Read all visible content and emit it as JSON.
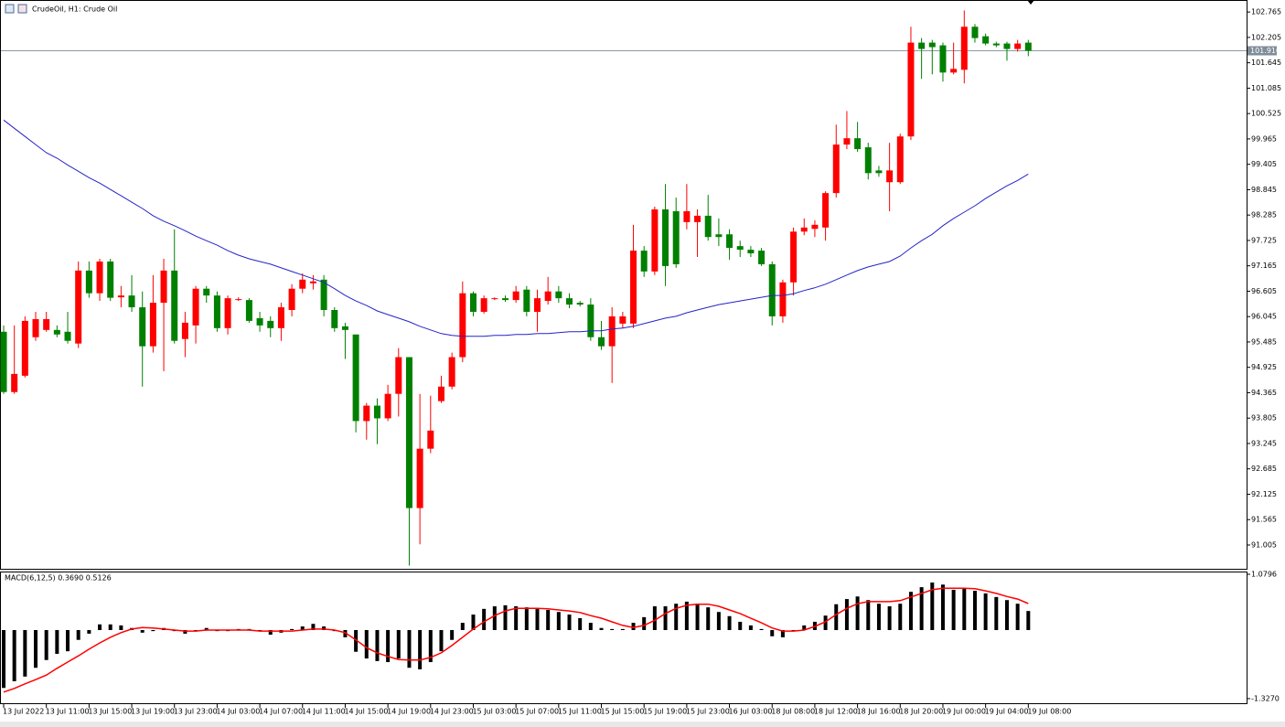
{
  "chart_data": [
    {
      "type": "candlestick",
      "title": "CrudeOil, H1:  Crude Oil",
      "categories": [
        "13 Jul 2022",
        null,
        null,
        null,
        "13 Jul 11:00",
        null,
        null,
        null,
        "13 Jul 15:00",
        null,
        null,
        null,
        "13 Jul 19:00",
        null,
        null,
        null,
        "13 Jul 23:00",
        null,
        null,
        null,
        "14 Jul 03:00",
        null,
        null,
        null,
        "14 Jul 07:00",
        null,
        null,
        null,
        "14 Jul 11:00",
        null,
        null,
        null,
        "14 Jul 15:00",
        null,
        null,
        null,
        "14 Jul 19:00",
        null,
        null,
        null,
        "14 Jul 23:00",
        null,
        null,
        null,
        "15 Jul 03:00",
        null,
        null,
        null,
        "15 Jul 07:00",
        null,
        null,
        null,
        "15 Jul 11:00",
        null,
        null,
        null,
        "15 Jul 15:00",
        null,
        null,
        null,
        "15 Jul 19:00",
        null,
        null,
        null,
        "15 Jul 23:00",
        null,
        null,
        null,
        "16 Jul 03:00",
        null,
        null,
        null,
        "18 Jul 08:00",
        null,
        null,
        null,
        "18 Jul 12:00",
        null,
        null,
        null,
        "18 Jul 16:00",
        null,
        null,
        null,
        "18 Jul 20:00",
        null,
        null,
        null,
        "19 Jul 00:00",
        null,
        null,
        null,
        "19 Jul 04:00",
        null,
        null,
        null,
        "19 Jul 08:00"
      ],
      "open": [
        95.71,
        94.38,
        94.74,
        95.59,
        95.75,
        95.75,
        95.71,
        95.45,
        97.06,
        96.56,
        97.26,
        96.47,
        96.51,
        96.25,
        95.39,
        96.35,
        97.06,
        95.55,
        95.85,
        96.66,
        96.51,
        95.79,
        96.41,
        96.41,
        96.01,
        95.95,
        95.79,
        96.19,
        96.66,
        96.78,
        96.86,
        96.19,
        95.83,
        95.65,
        93.74,
        94.08,
        93.8,
        94.34,
        95.15,
        91.82,
        93.13,
        94.18,
        94.5,
        95.15,
        96.56,
        96.15,
        96.43,
        96.45,
        96.41,
        96.64,
        96.15,
        96.39,
        96.6,
        96.45,
        96.35,
        96.31,
        95.59,
        95.39,
        95.89,
        95.89,
        97.5,
        97.04,
        98.41,
        98.37,
        98.13,
        98.13,
        98.27,
        97.86,
        97.86,
        97.6,
        97.52,
        97.5,
        97.2,
        96.05,
        96.8,
        97.92,
        97.98,
        98.01,
        98.77,
        99.84,
        99.98,
        99.78,
        99.27,
        99.01,
        99.01,
        100.02,
        102.09,
        102.09,
        102.03,
        101.43,
        101.49,
        102.44,
        102.23,
        102.07,
        102.07,
        101.95,
        102.09
      ],
      "high": [
        95.85,
        95.85,
        96.05,
        96.15,
        96.15,
        95.85,
        96.15,
        97.26,
        97.26,
        97.32,
        97.32,
        96.72,
        96.96,
        96.6,
        96.96,
        97.32,
        97.97,
        96.15,
        96.72,
        96.72,
        96.6,
        96.51,
        96.47,
        96.45,
        96.15,
        96.05,
        96.35,
        96.76,
        97.0,
        96.96,
        96.96,
        96.25,
        95.91,
        95.65,
        94.14,
        94.24,
        94.54,
        95.35,
        95.15,
        94.34,
        94.3,
        94.74,
        95.25,
        96.82,
        96.6,
        96.51,
        96.47,
        96.51,
        96.72,
        96.72,
        96.64,
        96.92,
        96.72,
        96.56,
        96.39,
        96.45,
        95.95,
        96.25,
        96.15,
        98.07,
        97.6,
        98.47,
        98.97,
        98.67,
        98.97,
        98.41,
        98.73,
        98.21,
        97.97,
        97.72,
        97.6,
        97.56,
        97.26,
        96.86,
        98.01,
        98.21,
        98.17,
        98.81,
        100.28,
        100.58,
        100.34,
        99.88,
        99.37,
        99.88,
        100.08,
        102.44,
        102.19,
        102.15,
        102.09,
        102.09,
        102.8,
        102.5,
        102.29,
        102.11,
        102.11,
        102.15,
        102.15
      ],
      "low": [
        94.34,
        94.34,
        94.7,
        95.51,
        95.71,
        95.59,
        95.45,
        95.35,
        96.46,
        96.39,
        96.39,
        96.25,
        96.15,
        94.5,
        95.25,
        94.84,
        95.45,
        95.15,
        95.45,
        96.35,
        95.71,
        95.65,
        96.39,
        95.91,
        95.71,
        95.59,
        95.51,
        96.05,
        96.56,
        96.64,
        96.05,
        95.71,
        95.11,
        93.49,
        93.33,
        93.23,
        93.74,
        93.84,
        90.55,
        91.02,
        93.03,
        94.14,
        94.44,
        95.04,
        96.05,
        96.11,
        96.41,
        96.37,
        96.35,
        96.05,
        95.71,
        96.31,
        96.35,
        96.23,
        96.27,
        95.51,
        95.31,
        94.58,
        95.79,
        95.79,
        96.92,
        96.96,
        96.72,
        97.12,
        97.97,
        97.36,
        97.72,
        97.6,
        97.3,
        97.36,
        97.36,
        97.16,
        95.85,
        95.91,
        96.51,
        97.84,
        97.8,
        97.72,
        98.67,
        99.74,
        99.68,
        99.07,
        99.13,
        98.37,
        98.97,
        99.94,
        101.29,
        101.39,
        101.23,
        101.39,
        101.19,
        102.09,
        102.03,
        101.99,
        101.69,
        101.89,
        101.79
      ],
      "close": [
        94.38,
        94.78,
        95.95,
        95.99,
        95.99,
        95.65,
        95.51,
        97.06,
        96.56,
        97.26,
        96.46,
        96.51,
        96.25,
        95.39,
        96.35,
        97.06,
        95.51,
        95.91,
        96.66,
        96.51,
        95.79,
        96.45,
        96.43,
        95.95,
        95.85,
        95.79,
        96.25,
        96.66,
        96.86,
        96.82,
        96.19,
        95.79,
        95.75,
        93.74,
        94.08,
        93.8,
        94.34,
        95.15,
        91.82,
        93.13,
        93.53,
        94.5,
        95.15,
        96.56,
        96.15,
        96.45,
        96.45,
        96.41,
        96.6,
        96.15,
        96.45,
        96.6,
        96.45,
        96.31,
        96.31,
        95.59,
        95.39,
        96.05,
        96.05,
        97.5,
        97.04,
        98.41,
        97.16,
        97.2,
        98.37,
        98.27,
        97.8,
        97.8,
        97.56,
        97.52,
        97.44,
        97.2,
        96.05,
        96.8,
        97.92,
        98.01,
        98.07,
        98.77,
        99.84,
        99.98,
        99.74,
        99.21,
        99.21,
        99.27,
        100.02,
        102.09,
        101.95,
        101.99,
        101.43,
        101.51,
        102.44,
        102.19,
        102.07,
        102.03,
        101.95,
        102.07,
        101.91
      ],
      "up_color": "#ff0000",
      "down_color": "#008000",
      "ma_values": [
        100.38,
        100.2,
        100.02,
        99.84,
        99.66,
        99.54,
        99.39,
        99.25,
        99.11,
        98.99,
        98.85,
        98.71,
        98.57,
        98.43,
        98.27,
        98.15,
        98.05,
        97.94,
        97.82,
        97.72,
        97.62,
        97.5,
        97.4,
        97.32,
        97.26,
        97.2,
        97.12,
        97.04,
        96.96,
        96.88,
        96.8,
        96.66,
        96.51,
        96.39,
        96.29,
        96.17,
        96.09,
        96.01,
        95.93,
        95.83,
        95.75,
        95.67,
        95.63,
        95.61,
        95.61,
        95.61,
        95.63,
        95.63,
        95.65,
        95.65,
        95.67,
        95.67,
        95.69,
        95.71,
        95.71,
        95.73,
        95.73,
        95.77,
        95.79,
        95.83,
        95.89,
        95.95,
        96.01,
        96.05,
        96.13,
        96.19,
        96.25,
        96.31,
        96.35,
        96.39,
        96.43,
        96.47,
        96.51,
        96.51,
        96.55,
        96.62,
        96.68,
        96.76,
        96.86,
        96.96,
        97.06,
        97.14,
        97.2,
        97.26,
        97.38,
        97.56,
        97.72,
        97.86,
        98.05,
        98.21,
        98.35,
        98.49,
        98.65,
        98.79,
        98.93,
        99.05,
        99.19
      ],
      "ma_color": "#2424c8",
      "current_price": {
        "value": 101.91,
        "label": "101.910"
      },
      "ylim": [
        90.48,
        103.01
      ],
      "yticks": [
        102.765,
        102.205,
        101.645,
        101.085,
        100.525,
        99.965,
        99.405,
        98.845,
        98.285,
        97.725,
        97.165,
        96.605,
        96.045,
        95.485,
        94.925,
        94.365,
        93.805,
        93.245,
        92.685,
        92.125,
        91.565,
        91.005
      ]
    },
    {
      "type": "macd",
      "title": "MACD(6,12,5) 0.3690 0.5126",
      "histogram": [
        -1.12,
        -0.99,
        -0.9,
        -0.73,
        -0.58,
        -0.46,
        -0.41,
        -0.19,
        -0.07,
        0.11,
        0.11,
        0.09,
        0.04,
        -0.05,
        -0.02,
        0.04,
        -0.02,
        -0.07,
        -0.02,
        0.04,
        -0.02,
        -0.02,
        0.02,
        0.02,
        -0.02,
        -0.09,
        -0.05,
        0.02,
        0.07,
        0.12,
        0.07,
        -0.02,
        -0.14,
        -0.42,
        -0.55,
        -0.6,
        -0.62,
        -0.55,
        -0.73,
        -0.76,
        -0.62,
        -0.41,
        -0.19,
        0.14,
        0.3,
        0.41,
        0.46,
        0.48,
        0.46,
        0.44,
        0.41,
        0.39,
        0.35,
        0.3,
        0.23,
        0.14,
        0.04,
        0.02,
        0.02,
        0.14,
        0.25,
        0.46,
        0.46,
        0.51,
        0.55,
        0.51,
        0.44,
        0.35,
        0.27,
        0.16,
        0.09,
        0.02,
        -0.12,
        -0.14,
        -0.02,
        0.09,
        0.16,
        0.28,
        0.5,
        0.6,
        0.65,
        0.58,
        0.51,
        0.46,
        0.51,
        0.74,
        0.83,
        0.92,
        0.88,
        0.78,
        0.8,
        0.76,
        0.71,
        0.64,
        0.58,
        0.51,
        0.369
      ],
      "histogram_color": "#000000",
      "signal": [
        -1.2,
        -1.13,
        -1.04,
        -0.96,
        -0.87,
        -0.74,
        -0.62,
        -0.5,
        -0.37,
        -0.25,
        -0.14,
        -0.05,
        0.02,
        0.05,
        0.04,
        0.02,
        0,
        -0.02,
        -0.02,
        0,
        0,
        0,
        0,
        0,
        -0.02,
        -0.02,
        -0.02,
        -0.02,
        0,
        0.02,
        0.02,
        0,
        -0.05,
        -0.19,
        -0.34,
        -0.44,
        -0.51,
        -0.57,
        -0.58,
        -0.58,
        -0.53,
        -0.44,
        -0.3,
        -0.14,
        0.02,
        0.16,
        0.28,
        0.37,
        0.42,
        0.42,
        0.42,
        0.41,
        0.39,
        0.37,
        0.34,
        0.28,
        0.23,
        0.16,
        0.09,
        0.05,
        0.09,
        0.19,
        0.32,
        0.42,
        0.48,
        0.5,
        0.5,
        0.46,
        0.39,
        0.32,
        0.23,
        0.14,
        0.04,
        -0.02,
        -0.02,
        0,
        0.07,
        0.16,
        0.3,
        0.42,
        0.51,
        0.55,
        0.55,
        0.55,
        0.57,
        0.64,
        0.71,
        0.78,
        0.81,
        0.81,
        0.81,
        0.8,
        0.76,
        0.71,
        0.65,
        0.6,
        0.5126
      ],
      "signal_color": "#ff0000",
      "ylim": [
        -1.416,
        1.115
      ],
      "yticks": [
        1.0796,
        {
          "value": -1.327,
          "label": "-1.3270"
        }
      ]
    }
  ]
}
